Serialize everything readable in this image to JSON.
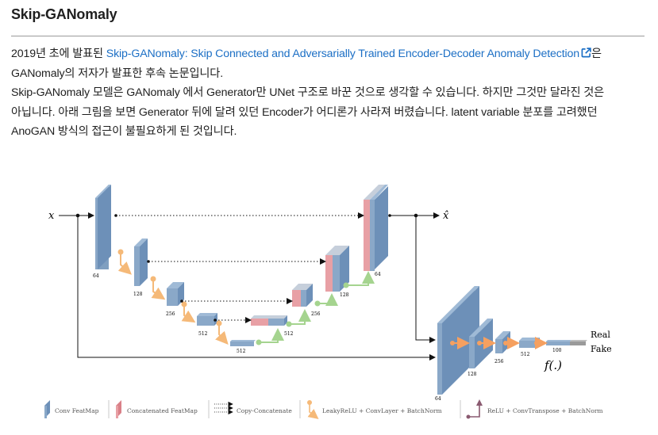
{
  "heading": "Skip-GANomaly",
  "paragraph1": {
    "before_link": "2019년 초에 발표된 ",
    "link_text": "Skip-GANomaly: Skip Connected and Adversarially Trained Encoder-Decoder Anomaly Detection",
    "after_link_line1": "은",
    "line2": "GANomaly의 저자가 발표한 후속 논문입니다."
  },
  "paragraph2": {
    "line1": "Skip-GANomaly 모델은 GANomaly 에서 Generator만 UNet 구조로 바꾼 것으로 생각할 수 있습니다. 하지만 그것만 달라진 것은",
    "line2": "아닙니다. 아래 그림을 보면 Generator 뒤에 달려 있던 Encoder가 어디론가 사라져 버렸습니다. latent variable 분포를 고려했던",
    "line3": "AnoGAN 방식의 접근이 불필요하게 된 것입니다."
  },
  "icons": {
    "external_link": "external-link-icon"
  },
  "colors": {
    "link": "#1c6fc5",
    "conv_featmap": "#7f9fc0",
    "concat_featmap": "#e8a0a5",
    "leaky_relu_arrow": "#f5b978",
    "relu_arrow": "#a5d48f",
    "discriminator_arrow": "#f5a060"
  },
  "figure": {
    "input_label": "x",
    "output_label": "x̂",
    "encoder_sizes": [
      "64",
      "128",
      "256",
      "512",
      "512"
    ],
    "decoder_sizes": [
      "512",
      "256",
      "128",
      "64"
    ],
    "discriminator_sizes": [
      "64",
      "128",
      "256",
      "512",
      "100"
    ],
    "disc_function_label": "f(.)",
    "real_label": "Real",
    "fake_label": "Fake",
    "legend": [
      {
        "key": "conv",
        "label": "Conv FeatMap"
      },
      {
        "key": "concat",
        "label": "Concatenated FeatMap"
      },
      {
        "key": "copy",
        "label": "Copy-Concatenate"
      },
      {
        "key": "leaky",
        "label": "LeakyReLU + ConvLayer + BatchNorm"
      },
      {
        "key": "relu",
        "label": "ReLU + ConvTranspose + BatchNorm"
      }
    ]
  }
}
